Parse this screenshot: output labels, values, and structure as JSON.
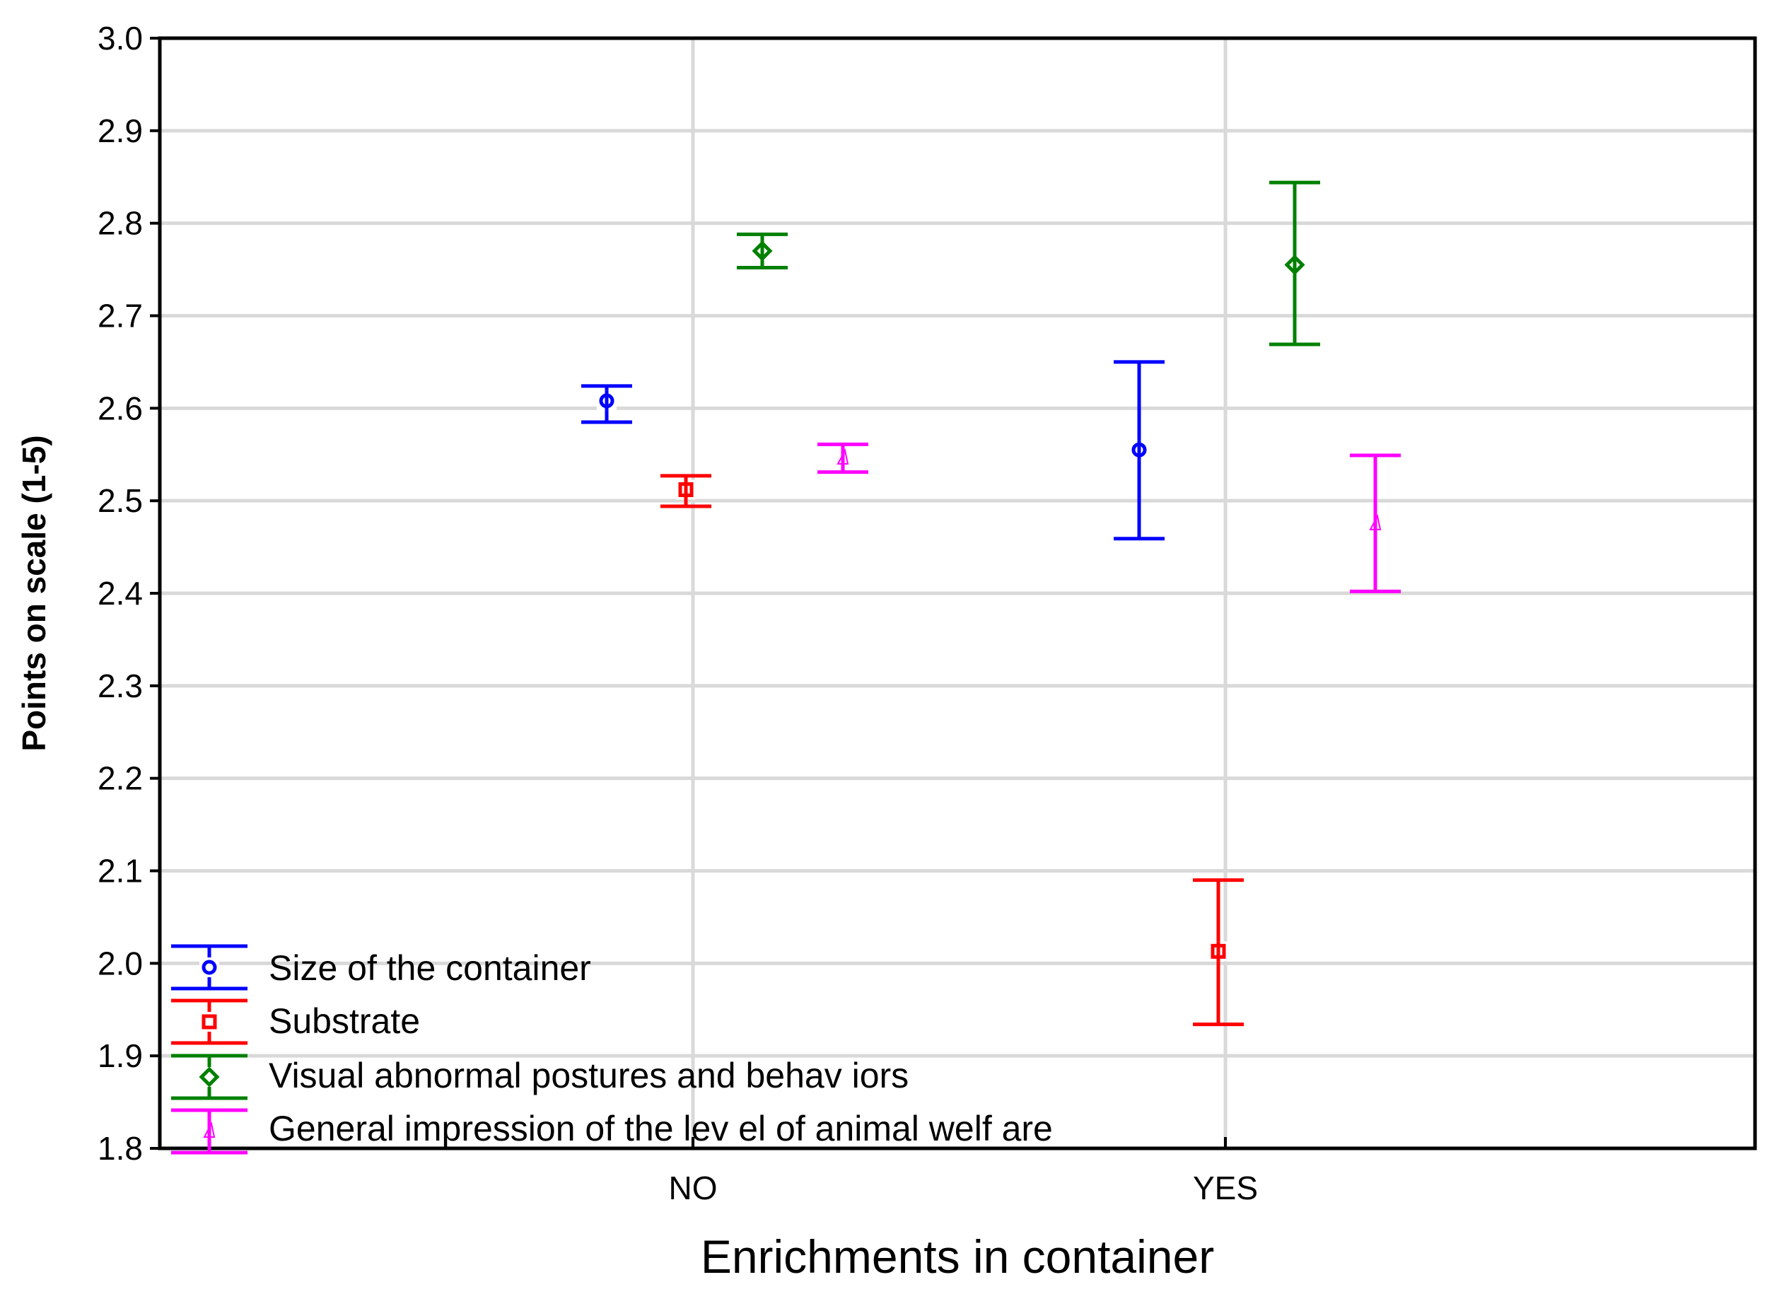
{
  "chart_data": {
    "type": "scatter",
    "subtype": "means-with-error-bars",
    "title": "",
    "xlabel": "Enrichments in container",
    "ylabel": "Points on scale (1-5)",
    "categories": [
      "NO",
      "YES"
    ],
    "ylim": [
      1.8,
      3.0
    ],
    "yticks": [
      "1.8",
      "1.9",
      "2.0",
      "2.1",
      "2.2",
      "2.3",
      "2.4",
      "2.5",
      "2.6",
      "2.7",
      "2.8",
      "2.9",
      "3.0"
    ],
    "grid": true,
    "legend_position": "bottom-left",
    "series": [
      {
        "name": "Size of  the container",
        "color": "#0000ff",
        "marker": "circle",
        "values": [
          2.608,
          2.555
        ],
        "lower": [
          2.585,
          2.459
        ],
        "upper": [
          2.624,
          2.65
        ]
      },
      {
        "name": "Substrate",
        "color": "#ff0000",
        "marker": "square",
        "values": [
          2.512,
          2.013
        ],
        "lower": [
          2.494,
          1.934
        ],
        "upper": [
          2.527,
          2.09
        ]
      },
      {
        "name": "Visual abnormal postures and behav iors",
        "color": "#008000",
        "marker": "diamond",
        "values": [
          2.77,
          2.755
        ],
        "lower": [
          2.752,
          2.669
        ],
        "upper": [
          2.788,
          2.844
        ]
      },
      {
        "name": "General impression of  the lev el of  animal welf are",
        "color": "#ff00ff",
        "marker": "triangle",
        "values": [
          2.546,
          2.475
        ],
        "lower": [
          2.531,
          2.402
        ],
        "upper": [
          2.561,
          2.549
        ]
      }
    ]
  }
}
